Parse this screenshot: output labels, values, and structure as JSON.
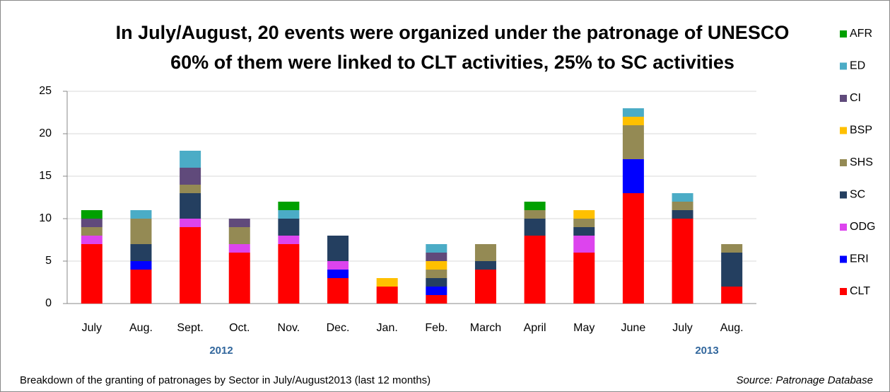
{
  "chart_data": {
    "type": "stacked_bar",
    "title_lines": [
      "In July/August, 20 events were organized under the patronage of UNESCO",
      "60% of them were linked to CLT activities, 25% to SC activities"
    ],
    "categories": [
      "July",
      "Aug.",
      "Sept.",
      "Oct.",
      "Nov.",
      "Dec.",
      "Jan.",
      "Feb.",
      "March",
      "April",
      "May",
      "June",
      "July",
      "Aug."
    ],
    "year_labels": [
      "2012",
      "2013"
    ],
    "series": [
      {
        "name": "CLT",
        "color": "#ff0000",
        "values": [
          7,
          4,
          9,
          6,
          7,
          3,
          2,
          1,
          4,
          8,
          6,
          13,
          10,
          2
        ]
      },
      {
        "name": "ERI",
        "color": "#0000ff",
        "values": [
          0,
          1,
          0,
          0,
          0,
          1,
          0,
          1,
          0,
          0,
          0,
          4,
          0,
          0
        ]
      },
      {
        "name": "ODG",
        "color": "#dd44ee",
        "values": [
          1,
          0,
          1,
          1,
          1,
          1,
          0,
          0,
          0,
          0,
          2,
          0,
          0,
          0
        ]
      },
      {
        "name": "SC",
        "color": "#243f60",
        "values": [
          0,
          2,
          3,
          0,
          2,
          3,
          0,
          1,
          1,
          2,
          1,
          0,
          1,
          4
        ]
      },
      {
        "name": "SHS",
        "color": "#948a54",
        "values": [
          1,
          3,
          1,
          2,
          0,
          0,
          0,
          1,
          2,
          1,
          1,
          4,
          1,
          1
        ]
      },
      {
        "name": "BSP",
        "color": "#ffc000",
        "values": [
          0,
          0,
          0,
          0,
          0,
          0,
          1,
          1,
          0,
          0,
          1,
          1,
          0,
          0
        ]
      },
      {
        "name": "CI",
        "color": "#604a7b",
        "values": [
          1,
          0,
          2,
          1,
          0,
          0,
          0,
          1,
          0,
          0,
          0,
          0,
          0,
          0
        ]
      },
      {
        "name": "ED",
        "color": "#4bacc6",
        "values": [
          0,
          1,
          2,
          0,
          1,
          0,
          0,
          1,
          0,
          0,
          0,
          1,
          1,
          0
        ]
      },
      {
        "name": "AFR",
        "color": "#00a000",
        "values": [
          1,
          0,
          0,
          0,
          1,
          0,
          0,
          0,
          0,
          1,
          0,
          0,
          0,
          0
        ]
      }
    ],
    "ylim": [
      0,
      25
    ],
    "yticks": [
      0,
      5,
      10,
      15,
      20,
      25
    ],
    "grid": true,
    "legend": "right",
    "caption": "Breakdown of the  granting of patronages by Sector in July/August2013 (last 12 months)",
    "source": "Source: Patronage  Database"
  }
}
